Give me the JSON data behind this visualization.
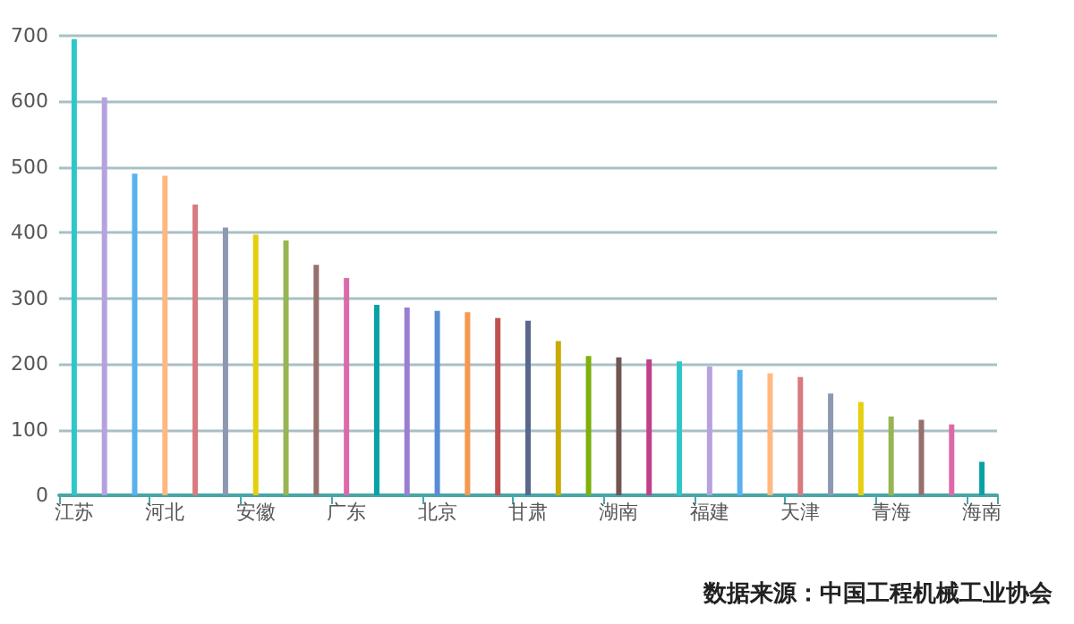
{
  "chart_data": {
    "type": "bar",
    "categories": [
      "江苏",
      null,
      null,
      "河北",
      null,
      null,
      "安徽",
      null,
      null,
      "广东",
      null,
      null,
      "北京",
      null,
      null,
      "甘肃",
      null,
      null,
      "湖南",
      null,
      null,
      "福建",
      null,
      null,
      "天津",
      null,
      null,
      "青海",
      null,
      null,
      "海南"
    ],
    "values": [
      695,
      606,
      490,
      487,
      443,
      408,
      397,
      388,
      351,
      331,
      290,
      286,
      281,
      279,
      270,
      266,
      235,
      212,
      210,
      207,
      204,
      196,
      191,
      186,
      180,
      155,
      142,
      120,
      115,
      108,
      51
    ],
    "colors": [
      "#2ec7c9",
      "#b6a2de",
      "#5ab1ef",
      "#ffb980",
      "#d87a80",
      "#8d98b3",
      "#e5cf0d",
      "#97b552",
      "#95706d",
      "#dc69aa",
      "#07a2a4",
      "#9a7fd1",
      "#588dd5",
      "#f5994e",
      "#c05050",
      "#59678c",
      "#c9ab00",
      "#7eb00a",
      "#6f5553",
      "#c14089",
      "#2ec7c9",
      "#b6a2de",
      "#5ab1ef",
      "#ffb980",
      "#d87a80",
      "#8d98b3",
      "#e5cf0d",
      "#97b552",
      "#95706d",
      "#dc69aa",
      "#07a2a4"
    ],
    "ylim": [
      0,
      700
    ],
    "yticks": [
      0,
      100,
      200,
      300,
      400,
      500,
      600,
      700
    ],
    "grid": "y",
    "annotations": [
      "数据来源：中国工程机械工业协会"
    ]
  }
}
